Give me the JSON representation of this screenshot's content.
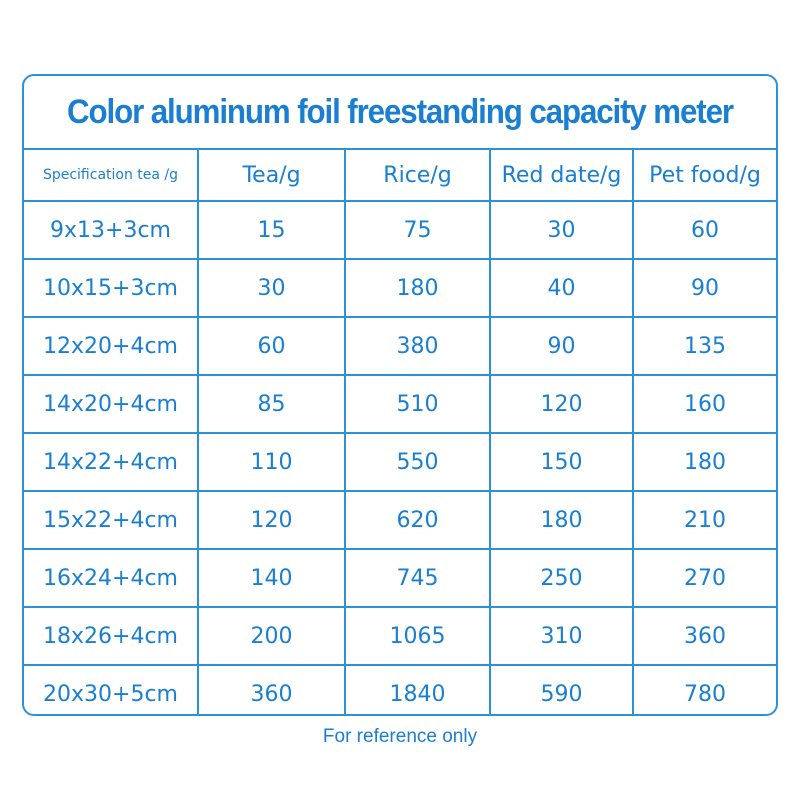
{
  "title": "Color aluminum foil freestanding capacity meter",
  "headers": [
    "Specification tea /g",
    "Tea/g",
    "Rice/g",
    "Red date/g",
    "Pet food/g"
  ],
  "rows": [
    [
      "9x13+3cm",
      "15",
      "75",
      "30",
      "60"
    ],
    [
      "10x15+3cm",
      "30",
      "180",
      "40",
      "90"
    ],
    [
      "12x20+4cm",
      "60",
      "380",
      "90",
      "135"
    ],
    [
      "14x20+4cm",
      "85",
      "510",
      "120",
      "160"
    ],
    [
      "14x22+4cm",
      "110",
      "550",
      "150",
      "180"
    ],
    [
      "15x22+4cm",
      "120",
      "620",
      "180",
      "210"
    ],
    [
      "16x24+4cm",
      "140",
      "745",
      "250",
      "270"
    ],
    [
      "18x26+4cm",
      "200",
      "1065",
      "310",
      "360"
    ],
    [
      "20x30+5cm",
      "360",
      "1840",
      "590",
      "780"
    ]
  ],
  "footnote": "For reference only",
  "colors": {
    "accent": "#1a7fd0",
    "border": "#2b92d6",
    "background": "#ffffff"
  }
}
